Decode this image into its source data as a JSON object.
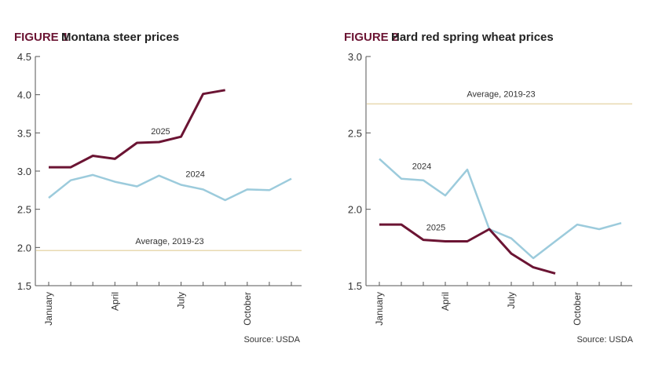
{
  "colors": {
    "series_2025": "#6b1433",
    "series_2024": "#9ccbdc",
    "average": "#e8d9b0",
    "figure_label": "#6b1433"
  },
  "chart_data": [
    {
      "type": "line",
      "figure_label": "FIGURE 1",
      "title": "Montana steer prices",
      "xlabel": "",
      "ylabel": "",
      "ylim": [
        1.5,
        4.5
      ],
      "yticks": [
        "1.5",
        "2.0",
        "2.5",
        "3.0",
        "3.5",
        "4.0",
        "4.5"
      ],
      "x": [
        1,
        2,
        3,
        4,
        5,
        6,
        7,
        8,
        9,
        10,
        11,
        12
      ],
      "xtick_labels": [
        {
          "x": 1,
          "label": "January"
        },
        {
          "x": 4,
          "label": "April"
        },
        {
          "x": 7,
          "label": "July"
        },
        {
          "x": 10,
          "label": "October"
        }
      ],
      "series": [
        {
          "name": "2025",
          "values": [
            3.05,
            3.05,
            3.2,
            3.16,
            3.37,
            3.38,
            3.45,
            4.01,
            4.06,
            null,
            null,
            null
          ]
        },
        {
          "name": "2024",
          "values": [
            2.65,
            2.88,
            2.95,
            2.86,
            2.8,
            2.94,
            2.82,
            2.76,
            2.62,
            2.76,
            2.75,
            2.9
          ]
        }
      ],
      "reference_line": {
        "label": "Average, 2019-23",
        "value": 1.96
      },
      "source": "Source: USDA",
      "grid": false
    },
    {
      "type": "line",
      "figure_label": "FIGURE 2",
      "title": "Hard red spring wheat prices",
      "xlabel": "",
      "ylabel": "",
      "ylim": [
        1.5,
        3.0
      ],
      "yticks": [
        "1.5",
        "2.0",
        "2.5",
        "3.0"
      ],
      "x": [
        1,
        2,
        3,
        4,
        5,
        6,
        7,
        8,
        9,
        10,
        11,
        12
      ],
      "xtick_labels": [
        {
          "x": 1,
          "label": "January"
        },
        {
          "x": 4,
          "label": "April"
        },
        {
          "x": 7,
          "label": "July"
        },
        {
          "x": 10,
          "label": "October"
        }
      ],
      "series": [
        {
          "name": "2025",
          "values": [
            1.9,
            1.9,
            1.8,
            1.79,
            1.79,
            1.87,
            1.71,
            1.62,
            1.58,
            null,
            null,
            null
          ]
        },
        {
          "name": "2024",
          "values": [
            2.33,
            2.2,
            2.19,
            2.09,
            2.26,
            1.87,
            1.81,
            1.68,
            1.79,
            1.9,
            1.87,
            1.91
          ]
        }
      ],
      "reference_line": {
        "label": "Average, 2019-23",
        "value": 2.69
      },
      "source": "Source: USDA",
      "grid": false
    }
  ]
}
